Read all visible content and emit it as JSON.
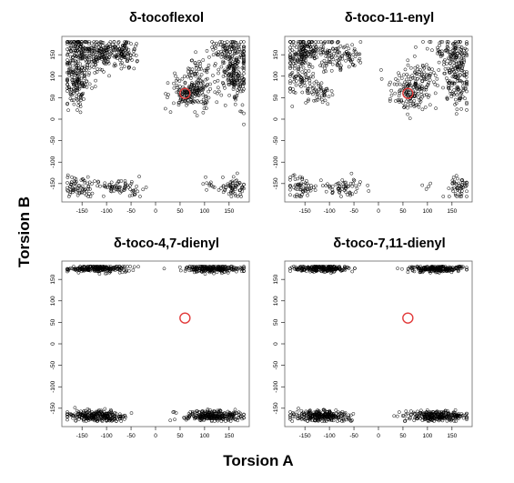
{
  "figure": {
    "ylabel": "Torsion B",
    "xlabel": "Torsion A",
    "marker_color": "#000000",
    "reference_color": "#e23a3a"
  },
  "chart_data": [
    {
      "type": "scatter",
      "title": "δ-tocoflexol",
      "xlim": [
        -180,
        180
      ],
      "ylim": [
        -180,
        180
      ],
      "xticks": [
        -150,
        -100,
        -50,
        0,
        50,
        100,
        150
      ],
      "yticks": [
        150,
        100,
        50,
        0,
        -50,
        -100,
        -150
      ],
      "reference_point": [
        60,
        60
      ],
      "clusters": [
        {
          "center": [
            -160,
            125
          ],
          "spread": [
            16,
            42
          ],
          "n": 160
        },
        {
          "center": [
            -145,
            160
          ],
          "spread": [
            18,
            14
          ],
          "n": 90
        },
        {
          "center": [
            -165,
            80
          ],
          "spread": [
            12,
            30
          ],
          "n": 80
        },
        {
          "center": [
            -110,
            145
          ],
          "spread": [
            15,
            22
          ],
          "n": 70
        },
        {
          "center": [
            -80,
            160
          ],
          "spread": [
            18,
            12
          ],
          "n": 90
        },
        {
          "center": [
            -60,
            150
          ],
          "spread": [
            12,
            18
          ],
          "n": 45
        },
        {
          "center": [
            70,
            60
          ],
          "spread": [
            22,
            18
          ],
          "n": 160
        },
        {
          "center": [
            90,
            100
          ],
          "spread": [
            18,
            22
          ],
          "n": 70
        },
        {
          "center": [
            160,
            110
          ],
          "spread": [
            14,
            42
          ],
          "n": 200
        },
        {
          "center": [
            150,
            160
          ],
          "spread": [
            22,
            14
          ],
          "n": 70
        },
        {
          "center": [
            -155,
            -160
          ],
          "spread": [
            18,
            12
          ],
          "n": 70
        },
        {
          "center": [
            -70,
            -160
          ],
          "spread": [
            22,
            10
          ],
          "n": 70
        },
        {
          "center": [
            160,
            -160
          ],
          "spread": [
            14,
            12
          ],
          "n": 60
        },
        {
          "center": [
            110,
            -150
          ],
          "spread": [
            14,
            8
          ],
          "n": 10
        }
      ]
    },
    {
      "type": "scatter",
      "title": "δ-toco-11-enyl",
      "xlim": [
        -180,
        180
      ],
      "ylim": [
        -180,
        180
      ],
      "xticks": [
        -150,
        -100,
        -50,
        0,
        50,
        100,
        150
      ],
      "yticks": [
        150,
        100,
        50,
        0,
        -50,
        -100,
        -150
      ],
      "reference_point": [
        60,
        60
      ],
      "clusters": [
        {
          "center": [
            -160,
            125
          ],
          "spread": [
            16,
            42
          ],
          "n": 150
        },
        {
          "center": [
            -145,
            160
          ],
          "spread": [
            18,
            14
          ],
          "n": 80
        },
        {
          "center": [
            -120,
            60
          ],
          "spread": [
            14,
            16
          ],
          "n": 50
        },
        {
          "center": [
            -90,
            150
          ],
          "spread": [
            22,
            18
          ],
          "n": 90
        },
        {
          "center": [
            -60,
            145
          ],
          "spread": [
            12,
            14
          ],
          "n": 30
        },
        {
          "center": [
            65,
            65
          ],
          "spread": [
            22,
            22
          ],
          "n": 150
        },
        {
          "center": [
            95,
            105
          ],
          "spread": [
            16,
            18
          ],
          "n": 50
        },
        {
          "center": [
            160,
            105
          ],
          "spread": [
            14,
            42
          ],
          "n": 180
        },
        {
          "center": [
            150,
            160
          ],
          "spread": [
            22,
            14
          ],
          "n": 60
        },
        {
          "center": [
            -155,
            -160
          ],
          "spread": [
            18,
            12
          ],
          "n": 60
        },
        {
          "center": [
            -70,
            -160
          ],
          "spread": [
            22,
            10
          ],
          "n": 60
        },
        {
          "center": [
            165,
            -160
          ],
          "spread": [
            12,
            12
          ],
          "n": 50
        },
        {
          "center": [
            110,
            -160
          ],
          "spread": [
            10,
            8
          ],
          "n": 4
        }
      ]
    },
    {
      "type": "scatter",
      "title": "δ-toco-4,7-dienyl",
      "xlim": [
        -180,
        180
      ],
      "ylim": [
        -180,
        180
      ],
      "xticks": [
        -150,
        -100,
        -50,
        0,
        50,
        100,
        150
      ],
      "yticks": [
        150,
        100,
        50,
        0,
        -50,
        -100,
        -150
      ],
      "reference_point": [
        60,
        60
      ],
      "clusters": [
        {
          "center": [
            -118,
            175
          ],
          "spread": [
            30,
            4
          ],
          "n": 230
        },
        {
          "center": [
            120,
            175
          ],
          "spread": [
            30,
            4
          ],
          "n": 230
        },
        {
          "center": [
            -118,
            -168
          ],
          "spread": [
            30,
            6
          ],
          "n": 260
        },
        {
          "center": [
            120,
            -168
          ],
          "spread": [
            30,
            6
          ],
          "n": 260
        }
      ]
    },
    {
      "type": "scatter",
      "title": "δ-toco-7,11-dienyl",
      "xlim": [
        -180,
        180
      ],
      "ylim": [
        -180,
        180
      ],
      "xticks": [
        -150,
        -100,
        -50,
        0,
        50,
        100,
        150
      ],
      "yticks": [
        150,
        100,
        50,
        0,
        -50,
        -100,
        -150
      ],
      "reference_point": [
        60,
        60
      ],
      "clusters": [
        {
          "center": [
            -118,
            175
          ],
          "spread": [
            30,
            4
          ],
          "n": 230
        },
        {
          "center": [
            120,
            175
          ],
          "spread": [
            30,
            4
          ],
          "n": 230
        },
        {
          "center": [
            -118,
            -168
          ],
          "spread": [
            30,
            6
          ],
          "n": 260
        },
        {
          "center": [
            120,
            -168
          ],
          "spread": [
            30,
            6
          ],
          "n": 260
        }
      ]
    }
  ]
}
